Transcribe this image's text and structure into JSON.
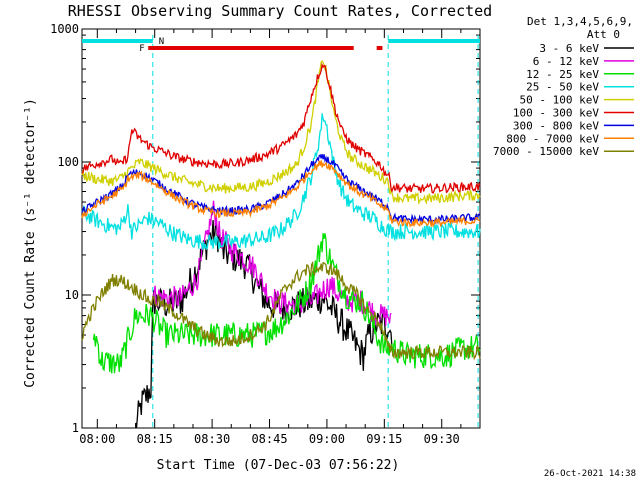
{
  "chart_data": {
    "type": "line",
    "title": "RHESSI Observing Summary Count Rates, Corrected",
    "xlabel": "Start Time (07-Dec-03 07:56:22)",
    "ylabel": "Corrected Count Rate (s⁻¹ detector⁻¹)",
    "yscale": "log",
    "ylim": [
      1,
      1000
    ],
    "xlim_min": [
      0,
      104
    ],
    "x_ticks": [
      {
        "m": 4,
        "label": "08:00"
      },
      {
        "m": 19,
        "label": "08:15"
      },
      {
        "m": 34,
        "label": "08:30"
      },
      {
        "m": 49,
        "label": "08:45"
      },
      {
        "m": 64,
        "label": "09:00"
      },
      {
        "m": 79,
        "label": "09:15"
      },
      {
        "m": 94,
        "label": "09:30"
      }
    ],
    "y_ticks": [
      {
        "v": 1,
        "label": "1"
      },
      {
        "v": 10,
        "label": "10"
      },
      {
        "v": 100,
        "label": "100"
      },
      {
        "v": 1000,
        "label": "1000"
      }
    ],
    "legend_header": [
      "Det 1,3,4,5,6,9,",
      "Att 0"
    ],
    "legend_position": "right",
    "flags": [
      {
        "label": "F",
        "color": "#e00000",
        "segments": [
          [
            17.3,
            71
          ],
          [
            77,
            78.5
          ]
        ]
      },
      {
        "label": "N",
        "color": "#00e0e0",
        "segments": [
          [
            0,
            18.5
          ],
          [
            80,
            104
          ]
        ]
      }
    ],
    "night_boundaries_min": [
      18.5,
      80,
      103.5
    ],
    "series": [
      {
        "name": "3 - 6 keV",
        "color": "#000000",
        "points": [
          [
            14,
            1
          ],
          [
            15.5,
            1.5
          ],
          [
            18,
            2
          ],
          [
            18.6,
            9
          ],
          [
            22,
            8.5
          ],
          [
            26,
            9
          ],
          [
            30,
            16
          ],
          [
            33,
            26
          ],
          [
            35,
            30
          ],
          [
            37,
            21
          ],
          [
            40,
            19
          ],
          [
            43,
            17
          ],
          [
            45,
            13
          ],
          [
            48,
            9
          ],
          [
            51,
            8
          ],
          [
            54,
            8
          ],
          [
            57,
            8.5
          ],
          [
            60,
            9
          ],
          [
            63,
            9.5
          ],
          [
            65,
            8
          ],
          [
            68,
            6
          ],
          [
            70,
            5
          ],
          [
            72,
            4
          ],
          [
            73.5,
            3.5
          ],
          [
            75,
            5
          ],
          [
            77,
            6
          ],
          [
            79,
            6
          ],
          [
            80,
            6
          ],
          [
            81,
            5
          ]
        ]
      },
      {
        "name": "6 - 12 keV",
        "color": "#e000e0",
        "points": [
          [
            18.6,
            10
          ],
          [
            22,
            9.5
          ],
          [
            26,
            9.5
          ],
          [
            30,
            13
          ],
          [
            33,
            30
          ],
          [
            34.5,
            45
          ],
          [
            36,
            28
          ],
          [
            39,
            22
          ],
          [
            42,
            19
          ],
          [
            45,
            16
          ],
          [
            48,
            11
          ],
          [
            51,
            9
          ],
          [
            54,
            8.5
          ],
          [
            57,
            8.5
          ],
          [
            60,
            9
          ],
          [
            63,
            11
          ],
          [
            65,
            12
          ],
          [
            67,
            10
          ],
          [
            69,
            9
          ],
          [
            71,
            9
          ],
          [
            73,
            9
          ],
          [
            75,
            8
          ],
          [
            77,
            7
          ],
          [
            79,
            7
          ],
          [
            80,
            7
          ],
          [
            81,
            6
          ]
        ]
      },
      {
        "name": "12 - 25 keV",
        "color": "#00e000",
        "points": [
          [
            3,
            5
          ],
          [
            4,
            4.5
          ],
          [
            5,
            3.2
          ],
          [
            10,
            3
          ],
          [
            14,
            7
          ],
          [
            16,
            7
          ],
          [
            18,
            7
          ],
          [
            22,
            5
          ],
          [
            26,
            5
          ],
          [
            30,
            5
          ],
          [
            35,
            5
          ],
          [
            40,
            5
          ],
          [
            45,
            5
          ],
          [
            50,
            5.5
          ],
          [
            54,
            7
          ],
          [
            57,
            9
          ],
          [
            59,
            11
          ],
          [
            61,
            16
          ],
          [
            63,
            28
          ],
          [
            64,
            22
          ],
          [
            66,
            15
          ],
          [
            69,
            10
          ],
          [
            71,
            9
          ],
          [
            73,
            9
          ],
          [
            75,
            7
          ],
          [
            77,
            5
          ],
          [
            79,
            4
          ],
          [
            81,
            4
          ],
          [
            85,
            3.5
          ],
          [
            90,
            3.5
          ],
          [
            95,
            3.5
          ],
          [
            100,
            4
          ],
          [
            104,
            4
          ]
        ]
      },
      {
        "name": "25 - 50 keV",
        "color": "#00e0e0",
        "points": [
          [
            0,
            42
          ],
          [
            4,
            36
          ],
          [
            8,
            32
          ],
          [
            10,
            32
          ],
          [
            12,
            44
          ],
          [
            13,
            30
          ],
          [
            14,
            32
          ],
          [
            17,
            38
          ],
          [
            20,
            35
          ],
          [
            24,
            29
          ],
          [
            28,
            26
          ],
          [
            32,
            25
          ],
          [
            36,
            25
          ],
          [
            40,
            25
          ],
          [
            44,
            26
          ],
          [
            48,
            27
          ],
          [
            52,
            31
          ],
          [
            56,
            40
          ],
          [
            58,
            55
          ],
          [
            60,
            80
          ],
          [
            62,
            150
          ],
          [
            63,
            230
          ],
          [
            64,
            180
          ],
          [
            66,
            90
          ],
          [
            68,
            60
          ],
          [
            70,
            48
          ],
          [
            73,
            42
          ],
          [
            76,
            38
          ],
          [
            79,
            32
          ],
          [
            81,
            30
          ],
          [
            85,
            30
          ],
          [
            90,
            30
          ],
          [
            95,
            30
          ],
          [
            100,
            30
          ],
          [
            104,
            30
          ]
        ]
      },
      {
        "name": "50 - 100 keV",
        "color": "#d0d000",
        "points": [
          [
            0,
            80
          ],
          [
            4,
            74
          ],
          [
            8,
            72
          ],
          [
            10,
            75
          ],
          [
            12,
            85
          ],
          [
            13,
            90
          ],
          [
            15,
            100
          ],
          [
            18,
            92
          ],
          [
            21,
            84
          ],
          [
            24,
            77
          ],
          [
            28,
            70
          ],
          [
            32,
            66
          ],
          [
            36,
            63
          ],
          [
            40,
            64
          ],
          [
            44,
            65
          ],
          [
            48,
            70
          ],
          [
            52,
            80
          ],
          [
            56,
            95
          ],
          [
            58,
            130
          ],
          [
            60,
            200
          ],
          [
            62,
            450
          ],
          [
            63,
            600
          ],
          [
            64,
            450
          ],
          [
            66,
            220
          ],
          [
            68,
            140
          ],
          [
            70,
            110
          ],
          [
            72,
            100
          ],
          [
            76,
            85
          ],
          [
            79,
            75
          ],
          [
            80,
            72
          ],
          [
            81,
            55
          ],
          [
            85,
            53
          ],
          [
            90,
            53
          ],
          [
            95,
            54
          ],
          [
            100,
            56
          ],
          [
            104,
            56
          ]
        ]
      },
      {
        "name": "100 - 300 keV",
        "color": "#e00000",
        "points": [
          [
            0,
            88
          ],
          [
            4,
            98
          ],
          [
            8,
            105
          ],
          [
            10,
            95
          ],
          [
            12,
            110
          ],
          [
            13,
            175
          ],
          [
            15,
            150
          ],
          [
            18,
            130
          ],
          [
            21,
            120
          ],
          [
            24,
            110
          ],
          [
            28,
            102
          ],
          [
            32,
            98
          ],
          [
            36,
            96
          ],
          [
            40,
            98
          ],
          [
            44,
            104
          ],
          [
            48,
            113
          ],
          [
            52,
            130
          ],
          [
            56,
            160
          ],
          [
            58,
            200
          ],
          [
            60,
            320
          ],
          [
            62,
            470
          ],
          [
            63,
            550
          ],
          [
            64,
            460
          ],
          [
            66,
            260
          ],
          [
            68,
            170
          ],
          [
            70,
            140
          ],
          [
            72,
            125
          ],
          [
            75,
            110
          ],
          [
            78,
            95
          ],
          [
            79,
            85
          ],
          [
            80,
            80
          ],
          [
            81,
            65
          ],
          [
            85,
            63
          ],
          [
            90,
            63
          ],
          [
            95,
            64
          ],
          [
            100,
            65
          ],
          [
            104,
            65
          ]
        ]
      },
      {
        "name": "300 - 800 keV",
        "color": "#0000e0",
        "points": [
          [
            0,
            42
          ],
          [
            4,
            50
          ],
          [
            8,
            58
          ],
          [
            11,
            68
          ],
          [
            12,
            80
          ],
          [
            15,
            84
          ],
          [
            18,
            75
          ],
          [
            21,
            66
          ],
          [
            24,
            58
          ],
          [
            28,
            50
          ],
          [
            32,
            45
          ],
          [
            36,
            43
          ],
          [
            40,
            43
          ],
          [
            44,
            44
          ],
          [
            48,
            48
          ],
          [
            52,
            56
          ],
          [
            56,
            68
          ],
          [
            58,
            80
          ],
          [
            60,
            95
          ],
          [
            62,
            105
          ],
          [
            63,
            108
          ],
          [
            64,
            105
          ],
          [
            66,
            95
          ],
          [
            68,
            80
          ],
          [
            70,
            70
          ],
          [
            73,
            62
          ],
          [
            76,
            55
          ],
          [
            79,
            48
          ],
          [
            80,
            46
          ],
          [
            81,
            38
          ],
          [
            85,
            37
          ],
          [
            90,
            37
          ],
          [
            95,
            37
          ],
          [
            100,
            38
          ],
          [
            104,
            38
          ]
        ]
      },
      {
        "name": "800 - 7000 keV",
        "color": "#ff8000",
        "points": [
          [
            0,
            40
          ],
          [
            4,
            48
          ],
          [
            8,
            56
          ],
          [
            11,
            64
          ],
          [
            12,
            75
          ],
          [
            15,
            80
          ],
          [
            18,
            72
          ],
          [
            21,
            63
          ],
          [
            24,
            55
          ],
          [
            28,
            48
          ],
          [
            32,
            43
          ],
          [
            36,
            41
          ],
          [
            40,
            41
          ],
          [
            44,
            42
          ],
          [
            48,
            46
          ],
          [
            52,
            53
          ],
          [
            56,
            64
          ],
          [
            58,
            75
          ],
          [
            60,
            88
          ],
          [
            62,
            96
          ],
          [
            63,
            98
          ],
          [
            64,
            96
          ],
          [
            66,
            88
          ],
          [
            68,
            75
          ],
          [
            70,
            66
          ],
          [
            73,
            58
          ],
          [
            76,
            52
          ],
          [
            79,
            45
          ],
          [
            80,
            43
          ],
          [
            81,
            36
          ],
          [
            85,
            35
          ],
          [
            90,
            35
          ],
          [
            95,
            35
          ],
          [
            100,
            36
          ],
          [
            104,
            36
          ]
        ]
      },
      {
        "name": "7000 - 15000 keV",
        "color": "#808000",
        "points": [
          [
            0,
            5
          ],
          [
            2,
            7
          ],
          [
            4,
            9
          ],
          [
            6,
            11
          ],
          [
            8,
            13
          ],
          [
            10,
            13
          ],
          [
            12,
            12
          ],
          [
            14,
            11
          ],
          [
            16,
            10
          ],
          [
            18,
            9
          ],
          [
            20,
            9
          ],
          [
            22,
            8
          ],
          [
            24,
            7.5
          ],
          [
            28,
            6
          ],
          [
            32,
            5
          ],
          [
            36,
            4.5
          ],
          [
            40,
            4.5
          ],
          [
            44,
            5
          ],
          [
            48,
            6
          ],
          [
            50,
            7.5
          ],
          [
            52,
            10
          ],
          [
            54,
            12
          ],
          [
            56,
            13.5
          ],
          [
            58,
            15
          ],
          [
            60,
            15.5
          ],
          [
            62,
            16
          ],
          [
            64,
            16
          ],
          [
            66,
            15
          ],
          [
            68,
            13
          ],
          [
            70,
            11
          ],
          [
            72,
            10
          ],
          [
            74,
            8
          ],
          [
            76,
            7
          ],
          [
            78,
            6
          ],
          [
            79,
            5
          ],
          [
            80,
            4
          ],
          [
            81,
            3.7
          ],
          [
            85,
            3.7
          ],
          [
            90,
            3.7
          ],
          [
            95,
            3.7
          ],
          [
            100,
            3.7
          ],
          [
            104,
            3.7
          ]
        ]
      }
    ]
  },
  "footer": {
    "date": "26-Oct-2021 14:38"
  }
}
